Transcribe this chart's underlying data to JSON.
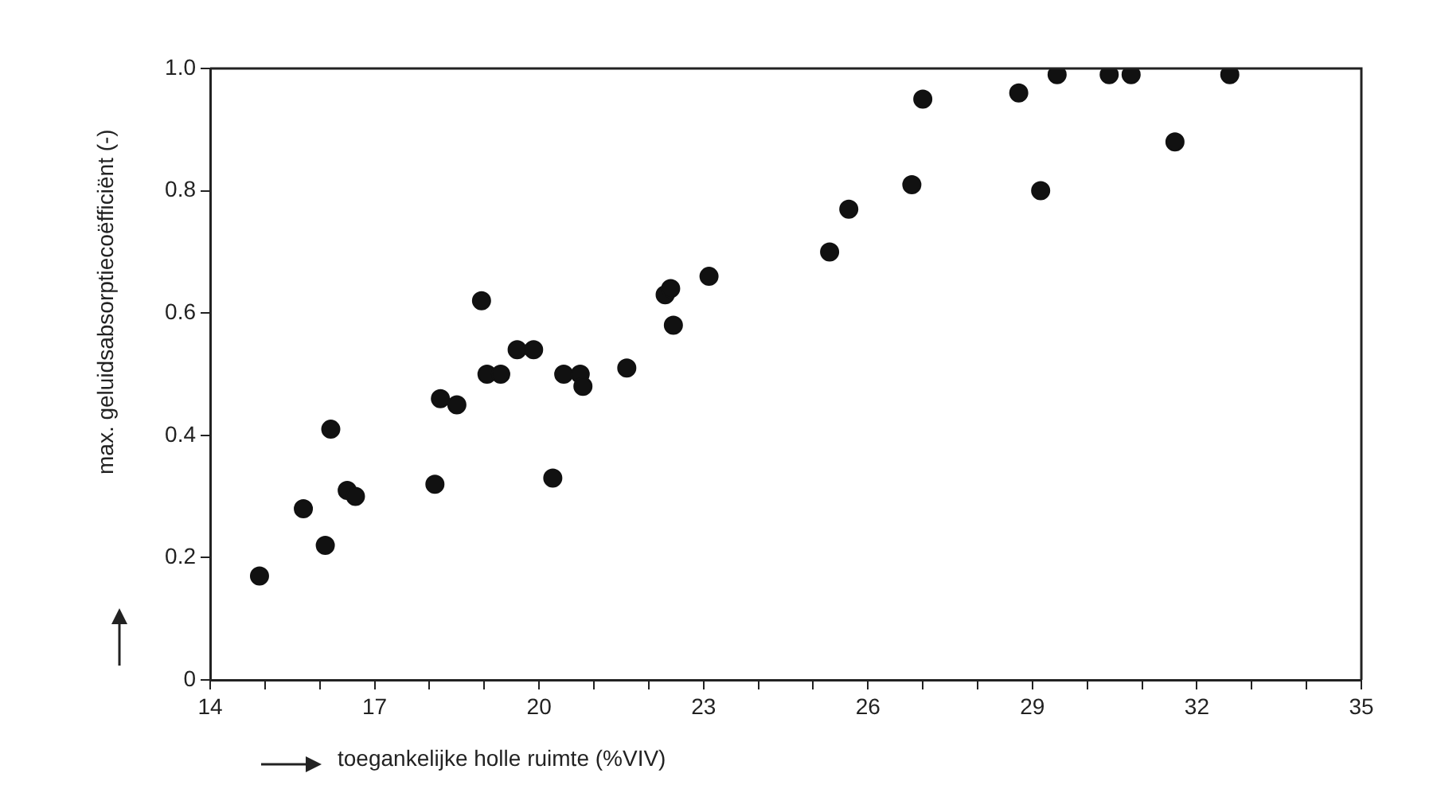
{
  "chart_data": {
    "type": "scatter",
    "xlabel": "toegankelijke holle ruimte (%VIV)",
    "ylabel": "max. geluidsabsorptiecoëfficiënt (-)",
    "x": [
      14.9,
      15.7,
      16.1,
      16.2,
      16.5,
      16.65,
      18.1,
      18.2,
      18.5,
      18.95,
      19.05,
      19.3,
      19.6,
      19.9,
      20.25,
      20.45,
      20.75,
      20.8,
      21.6,
      22.3,
      22.4,
      22.45,
      23.1,
      25.3,
      25.65,
      26.8,
      27.0,
      28.75,
      29.15,
      29.45,
      30.4,
      30.8,
      31.6,
      32.6
    ],
    "series": [
      {
        "color": "#111111",
        "values": [
          0.17,
          0.28,
          0.22,
          0.41,
          0.31,
          0.3,
          0.32,
          0.46,
          0.45,
          0.62,
          0.5,
          0.5,
          0.54,
          0.54,
          0.33,
          0.5,
          0.5,
          0.48,
          0.51,
          0.63,
          0.64,
          0.58,
          0.66,
          0.7,
          0.77,
          0.81,
          0.95,
          0.96,
          0.8,
          0.99,
          0.99,
          0.99,
          0.88,
          0.99
        ]
      }
    ],
    "xlim": [
      14,
      35
    ],
    "ylim": [
      0,
      1
    ],
    "xticks": [
      14,
      {
        "value": 15,
        "label": null
      },
      {
        "value": 16,
        "label": null
      },
      17,
      {
        "value": 18,
        "label": null
      },
      {
        "value": 19,
        "label": null
      },
      20,
      {
        "value": 21,
        "label": null
      },
      {
        "value": 22,
        "label": null
      },
      23,
      {
        "value": 24,
        "label": null
      },
      {
        "value": 25,
        "label": null
      },
      26,
      {
        "value": 27,
        "label": null
      },
      {
        "value": 28,
        "label": null
      },
      29,
      {
        "value": 30,
        "label": null
      },
      {
        "value": 31,
        "label": null
      },
      32,
      {
        "value": 33,
        "label": null
      },
      {
        "value": 34,
        "label": null
      },
      35
    ],
    "yticks": [
      0,
      0.2,
      0.4,
      0.6,
      0.8,
      {
        "value": 1,
        "label": "1.0"
      }
    ],
    "grid": false,
    "legend": false,
    "marker": "circle"
  }
}
